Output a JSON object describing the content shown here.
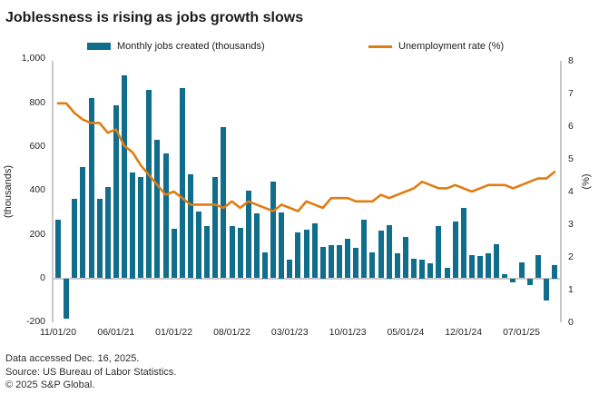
{
  "title": "Joblessness is rising as jobs growth slows",
  "legend": {
    "bar_label": "Monthly jobs created (thousands)",
    "line_label": "Unemployment rate (%)"
  },
  "colors": {
    "bar": "#116d8c",
    "line": "#e07c12",
    "axis": "#c9c9c9",
    "text": "#262626",
    "title": "#1a1a1a"
  },
  "y_left": {
    "label": "(thousands)",
    "ticks": [
      {
        "label": "1,000",
        "value": 1000
      },
      {
        "label": "800",
        "value": 800
      },
      {
        "label": "600",
        "value": 600
      },
      {
        "label": "400",
        "value": 400
      },
      {
        "label": "200",
        "value": 200
      },
      {
        "label": "0",
        "value": 0
      },
      {
        "label": "-200",
        "value": -200
      }
    ]
  },
  "y_right": {
    "label": "(%)",
    "ticks": [
      8,
      7,
      6,
      5,
      4,
      3,
      2,
      1,
      0
    ]
  },
  "x_axis": {
    "tick_labels": [
      "11/01/20",
      "06/01/21",
      "01/01/22",
      "08/01/22",
      "03/01/23",
      "10/01/23",
      "05/01/24",
      "12/01/24",
      "07/01/25"
    ],
    "tick_indices": [
      0,
      7,
      14,
      21,
      28,
      35,
      42,
      49,
      56
    ]
  },
  "footer": {
    "line1": "Data accessed Dec. 16, 2025.",
    "line2": "Source: US Bureau of Labor Statistics.",
    "line3": "© 2025 S&P Global."
  },
  "chart_data": {
    "type": "bar+line",
    "title": "Joblessness is rising as jobs growth slows",
    "grid": false,
    "legend_position": "top",
    "y_left_range": [
      -200,
      1000
    ],
    "y_right_range": [
      0,
      8
    ],
    "y_left_label": "(thousands)",
    "y_right_label": "(%)",
    "categories": [
      "11/01/20",
      "12/01/20",
      "01/01/21",
      "02/01/21",
      "03/01/21",
      "04/01/21",
      "05/01/21",
      "06/01/21",
      "07/01/21",
      "08/01/21",
      "09/01/21",
      "10/01/21",
      "11/01/21",
      "12/01/21",
      "01/01/22",
      "02/01/22",
      "03/01/22",
      "04/01/22",
      "05/01/22",
      "06/01/22",
      "07/01/22",
      "08/01/22",
      "09/01/22",
      "10/01/22",
      "11/01/22",
      "12/01/22",
      "01/01/23",
      "02/01/23",
      "03/01/23",
      "04/01/23",
      "05/01/23",
      "06/01/23",
      "07/01/23",
      "08/01/23",
      "09/01/23",
      "10/01/23",
      "11/01/23",
      "12/01/23",
      "01/01/24",
      "02/01/24",
      "03/01/24",
      "04/01/24",
      "05/01/24",
      "06/01/24",
      "07/01/24",
      "08/01/24",
      "09/01/24",
      "10/01/24",
      "11/01/24",
      "12/01/24",
      "01/01/25",
      "02/01/25",
      "03/01/25",
      "04/01/25",
      "05/01/25",
      "06/01/25",
      "07/01/25",
      "08/01/25",
      "09/01/25",
      "10/01/25",
      "11/01/25"
    ],
    "series": [
      {
        "name": "Monthly jobs created (thousands)",
        "type": "bar",
        "axis": "left",
        "color": "#116d8c",
        "values": [
          265,
          -183,
          361,
          508,
          820,
          361,
          416,
          790,
          925,
          484,
          460,
          858,
          632,
          570,
          224,
          865,
          472,
          304,
          237,
          460,
          690,
          237,
          228,
          398,
          295,
          120,
          441,
          302,
          86,
          210,
          221,
          251,
          145,
          152,
          152,
          179,
          138,
          265,
          117,
          217,
          244,
          114,
          189,
          90,
          87,
          69,
          237,
          46,
          258,
          321,
          106,
          101,
          114,
          154,
          18,
          -18,
          72,
          -32,
          106,
          -103,
          62
        ]
      },
      {
        "name": "Unemployment rate (%)",
        "type": "line",
        "axis": "right",
        "color": "#e07c12",
        "values": [
          6.7,
          6.7,
          6.4,
          6.2,
          6.1,
          6.1,
          5.8,
          5.9,
          5.4,
          5.2,
          4.8,
          4.5,
          4.2,
          3.9,
          4.0,
          3.8,
          3.6,
          3.6,
          3.6,
          3.6,
          3.5,
          3.7,
          3.5,
          3.7,
          3.6,
          3.5,
          3.4,
          3.6,
          3.5,
          3.4,
          3.7,
          3.6,
          3.5,
          3.8,
          3.8,
          3.8,
          3.7,
          3.7,
          3.7,
          3.9,
          3.8,
          3.9,
          4.0,
          4.1,
          4.3,
          4.2,
          4.1,
          4.1,
          4.2,
          4.1,
          4.0,
          4.1,
          4.2,
          4.2,
          4.2,
          4.1,
          4.2,
          4.3,
          4.4,
          4.4,
          4.6
        ]
      }
    ]
  }
}
